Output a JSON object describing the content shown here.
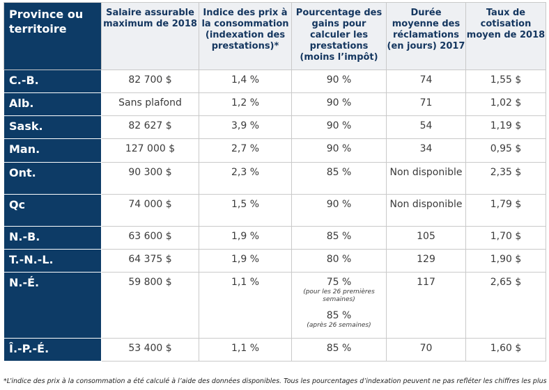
{
  "table": {
    "headers": [
      "Province ou territoire",
      "Salaire assurable maximum de 2018",
      "Indice des prix à la consommation (indexation des prestations)*",
      "Pourcentage des gains pour calculer les prestations (moins l’impôt)",
      "Durée moyenne des réclamations (en jours) 2017",
      "Taux de cotisation moyen de 2018"
    ],
    "rows": [
      {
        "province": "C.-B.",
        "salaire": "82 700 $",
        "indice": "1,4 %",
        "pourcentage": "90 %",
        "duree": "74",
        "taux": "1,55 $"
      },
      {
        "province": "Alb.",
        "salaire": "Sans plafond",
        "indice": "1,2 %",
        "pourcentage": "90 %",
        "duree": "71",
        "taux": "1,02 $"
      },
      {
        "province": "Sask.",
        "salaire": "82 627 $",
        "indice": "3,9 %",
        "pourcentage": "90 %",
        "duree": "54",
        "taux": "1,19 $"
      },
      {
        "province": "Man.",
        "salaire": "127 000 $",
        "indice": "2,7 %",
        "pourcentage": "90 %",
        "duree": "34",
        "taux": "0,95 $"
      },
      {
        "province": "Ont.",
        "salaire": "90 300 $",
        "indice": "2,3 %",
        "pourcentage": "85 %",
        "duree": "Non disponible",
        "taux": "2,35 $"
      },
      {
        "province": "Qc",
        "salaire": "74 000 $",
        "indice": "1,5 %",
        "pourcentage": "90 %",
        "duree": "Non disponible",
        "taux": "1,79 $"
      },
      {
        "province": "N.-B.",
        "salaire": "63 600 $",
        "indice": "1,9 %",
        "pourcentage": "85 %",
        "duree": "105",
        "taux": "1,70 $"
      },
      {
        "province": "T.-N.-L.",
        "salaire": "64 375 $",
        "indice": "1,9 %",
        "pourcentage": "80 %",
        "duree": "129",
        "taux": "1,90 $"
      },
      {
        "province": "N.-É.",
        "salaire": "59 800 $",
        "indice": "1,1 %",
        "pourcentage": "75 %",
        "pourcentage_note": "(pour les 26 premières semaines)",
        "pourcentage2": "85 %",
        "pourcentage2_note": "(après 26 semaines)",
        "duree": "117",
        "taux": "2,65 $"
      },
      {
        "province": "Î.-P.-É.",
        "salaire": "53 400 $",
        "indice": "1,1 %",
        "pourcentage": "85 %",
        "duree": "70",
        "taux": "1,60 $"
      }
    ]
  },
  "footnote": "*L’indice des prix à la consommation a été calculé à l’aide des données disponibles. Tous les pourcentages d’indexation peuvent ne pas refléter les chiffres les plus récents.",
  "colors": {
    "navy": "#0d3b66",
    "header_bg": "#eef0f3",
    "header_text": "#14365f"
  }
}
